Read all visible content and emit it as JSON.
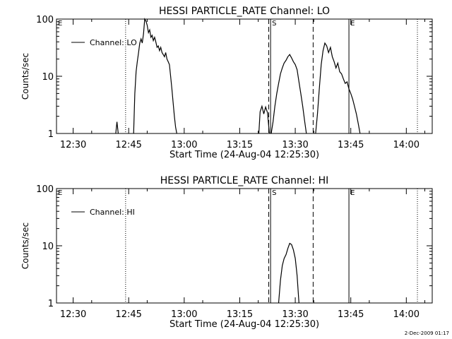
{
  "footer_timestamp": "2-Dec-2009 01:17",
  "chart_data": [
    {
      "type": "line",
      "title": "HESSI PARTICLE_RATE Channel: LO",
      "xlabel": "Start Time (24-Aug-04 12:25:30)",
      "ylabel": "Counts/sec",
      "y_scale": "log",
      "ylim": [
        1,
        100
      ],
      "y_ticks": [
        1,
        10,
        100
      ],
      "y_tick_labels": [
        "1",
        "10",
        "100"
      ],
      "xlim": [
        "12:25:30",
        "14:07:00"
      ],
      "x_ticks": [
        "12:30",
        "12:45",
        "13:00",
        "13:15",
        "13:30",
        "13:45",
        "14:00"
      ],
      "grid": false,
      "legend": {
        "position": "top-left",
        "entries": [
          "Channel: LO"
        ]
      },
      "markers": [
        {
          "label": "E",
          "time": "12:25:30",
          "style": "none"
        },
        {
          "label": "",
          "time": "12:44:10",
          "style": "dotted"
        },
        {
          "label": "",
          "time": "13:22:50",
          "style": "dashed"
        },
        {
          "label": "S",
          "time": "13:23:20",
          "style": "solid"
        },
        {
          "label": "",
          "time": "13:34:50",
          "style": "dashed"
        },
        {
          "label": "E",
          "time": "13:44:30",
          "style": "solid"
        },
        {
          "label": "",
          "time": "14:03:00",
          "style": "dotted"
        }
      ],
      "series": [
        {
          "name": "Channel: LO",
          "segments": [
            {
              "x": [
                "12:41:30",
                "12:41:50",
                "12:42:10"
              ],
              "y": [
                1,
                1.6,
                1
              ]
            },
            {
              "x": [
                "12:46:20",
                "12:46:40",
                "12:47:00",
                "12:47:20",
                "12:47:40",
                "12:48:00",
                "12:48:20",
                "12:48:40",
                "12:49:00",
                "12:49:20",
                "12:49:40",
                "12:50:00",
                "12:50:20",
                "12:50:40",
                "12:51:00",
                "12:51:20",
                "12:51:40",
                "12:52:00",
                "12:52:20",
                "12:52:40",
                "12:53:00",
                "12:53:20",
                "12:53:40",
                "12:54:00",
                "12:54:20",
                "12:54:40",
                "12:55:00",
                "12:55:20",
                "12:55:40",
                "12:56:00",
                "12:56:20",
                "12:56:40",
                "12:57:00",
                "12:57:20",
                "12:57:40",
                "12:58:00"
              ],
              "y": [
                1,
                5,
                12,
                18,
                26,
                38,
                45,
                38,
                55,
                100,
                92,
                78,
                58,
                65,
                48,
                52,
                42,
                48,
                40,
                32,
                34,
                28,
                32,
                26,
                24,
                22,
                26,
                20,
                18,
                16,
                10,
                6,
                3.5,
                2,
                1.3,
                1
              ]
            },
            {
              "x": [
                "13:20:10",
                "13:20:30",
                "13:21:00",
                "13:21:30",
                "13:22:00",
                "13:22:30",
                "13:23:00"
              ],
              "y": [
                1,
                2.4,
                3,
                2.2,
                2.9,
                2.3,
                1
              ]
            },
            {
              "x": [
                "13:23:30",
                "13:24:00",
                "13:24:30",
                "13:25:00",
                "13:25:30",
                "13:26:00",
                "13:26:30",
                "13:27:00",
                "13:27:30",
                "13:28:00",
                "13:28:30",
                "13:29:00",
                "13:29:30",
                "13:30:00",
                "13:30:30",
                "13:31:00",
                "13:31:30",
                "13:32:00",
                "13:32:30",
                "13:33:00"
              ],
              "y": [
                1,
                1.6,
                3,
                5,
                7.5,
                11,
                14,
                17,
                19,
                22,
                24,
                21,
                18,
                16,
                13,
                8,
                5,
                3,
                1.7,
                1
              ]
            },
            {
              "x": [
                "13:35:30",
                "13:36:00",
                "13:36:30",
                "13:37:00",
                "13:37:30",
                "13:38:00",
                "13:38:30",
                "13:39:00",
                "13:39:30",
                "13:40:00",
                "13:40:30",
                "13:41:00",
                "13:41:30",
                "13:42:00",
                "13:42:30",
                "13:43:00",
                "13:43:30",
                "13:44:00",
                "13:44:30",
                "13:45:00",
                "13:45:30",
                "13:46:00",
                "13:46:30",
                "13:47:00",
                "13:47:30"
              ],
              "y": [
                1,
                2.2,
                6,
                16,
                28,
                38,
                34,
                26,
                32,
                22,
                18,
                14,
                17,
                12,
                11,
                9,
                7.5,
                8,
                6,
                5,
                4,
                3,
                2.2,
                1.5,
                1
              ]
            }
          ]
        }
      ]
    },
    {
      "type": "line",
      "title": "HESSI PARTICLE_RATE Channel: HI",
      "xlabel": "Start Time (24-Aug-04 12:25:30)",
      "ylabel": "Counts/sec",
      "y_scale": "log",
      "ylim": [
        1,
        100
      ],
      "y_ticks": [
        1,
        10,
        100
      ],
      "y_tick_labels": [
        "1",
        "10",
        "100"
      ],
      "xlim": [
        "12:25:30",
        "14:07:00"
      ],
      "x_ticks": [
        "12:30",
        "12:45",
        "13:00",
        "13:15",
        "13:30",
        "13:45",
        "14:00"
      ],
      "grid": false,
      "legend": {
        "position": "top-left",
        "entries": [
          "Channel: HI"
        ]
      },
      "markers": [
        {
          "label": "E",
          "time": "12:25:30",
          "style": "none"
        },
        {
          "label": "",
          "time": "12:44:10",
          "style": "dotted"
        },
        {
          "label": "",
          "time": "13:22:50",
          "style": "dashed"
        },
        {
          "label": "S",
          "time": "13:23:20",
          "style": "solid"
        },
        {
          "label": "",
          "time": "13:34:50",
          "style": "dashed"
        },
        {
          "label": "E",
          "time": "13:44:30",
          "style": "solid"
        },
        {
          "label": "",
          "time": "14:03:00",
          "style": "dotted"
        }
      ],
      "series": [
        {
          "name": "Channel: HI",
          "segments": [
            {
              "x": [
                "13:25:30",
                "13:26:00",
                "13:26:30",
                "13:27:00",
                "13:27:30",
                "13:28:00",
                "13:28:30",
                "13:29:00",
                "13:29:30",
                "13:30:00",
                "13:30:30",
                "13:31:00"
              ],
              "y": [
                1,
                2.5,
                4.5,
                6,
                7,
                9,
                11,
                10.5,
                8.5,
                6,
                3,
                1
              ]
            }
          ]
        }
      ]
    }
  ]
}
